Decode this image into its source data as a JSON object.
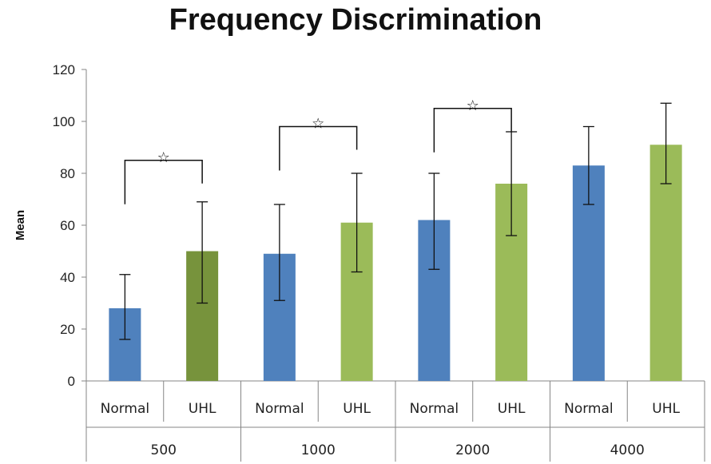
{
  "chart_data": {
    "type": "bar",
    "title": "Frequency Discrimination",
    "xlabel": "",
    "ylabel": "Mean",
    "ylim": [
      0,
      120
    ],
    "yticks": [
      0,
      20,
      40,
      60,
      80,
      100,
      120
    ],
    "groups": [
      "500",
      "1000",
      "2000",
      "4000"
    ],
    "subcategories": [
      "Normal",
      "UHL"
    ],
    "bars": [
      {
        "group": "500",
        "sub": "Normal",
        "value": 28,
        "err_low": 16,
        "err_high": 41,
        "color": "#4f81bd"
      },
      {
        "group": "500",
        "sub": "UHL",
        "value": 50,
        "err_low": 30,
        "err_high": 69,
        "color": "#77933c"
      },
      {
        "group": "1000",
        "sub": "Normal",
        "value": 49,
        "err_low": 31,
        "err_high": 68,
        "color": "#4f81bd"
      },
      {
        "group": "1000",
        "sub": "UHL",
        "value": 61,
        "err_low": 42,
        "err_high": 80,
        "color": "#9bbb59"
      },
      {
        "group": "2000",
        "sub": "Normal",
        "value": 62,
        "err_low": 43,
        "err_high": 80,
        "color": "#4f81bd"
      },
      {
        "group": "2000",
        "sub": "UHL",
        "value": 76,
        "err_low": 56,
        "err_high": 96,
        "color": "#9bbb59"
      },
      {
        "group": "4000",
        "sub": "Normal",
        "value": 83,
        "err_low": 68,
        "err_high": 98,
        "color": "#4f81bd"
      },
      {
        "group": "4000",
        "sub": "UHL",
        "value": 91,
        "err_low": 76,
        "err_high": 107,
        "color": "#9bbb59"
      }
    ],
    "significance": [
      {
        "group": "500",
        "marker": "☆",
        "level": 85
      },
      {
        "group": "1000",
        "marker": "☆",
        "level": 98
      },
      {
        "group": "2000",
        "marker": "☆",
        "level": 105
      }
    ],
    "grid": false,
    "legend": "none"
  }
}
